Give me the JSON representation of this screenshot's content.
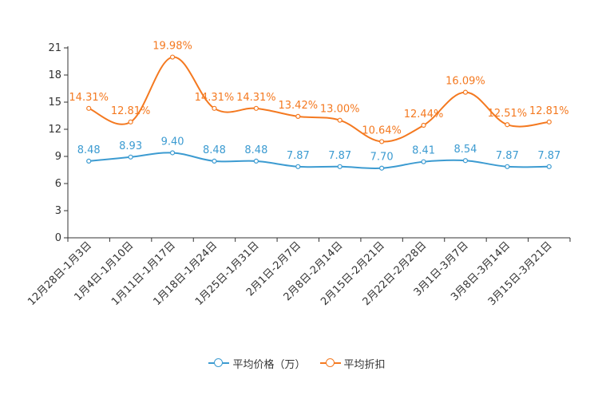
{
  "chart_data": {
    "type": "line",
    "title": "",
    "xlabel": "",
    "ylabel": "",
    "ylim": [
      0,
      21
    ],
    "yticks": [
      0,
      3,
      6,
      9,
      12,
      15,
      18,
      21
    ],
    "categories": [
      "12月28日-1月3日",
      "1月4日-1月10日",
      "1月11日-1月17日",
      "1月18日-1月24日",
      "1月25日-1月31日",
      "2月1日-2月7日",
      "2月8日-2月14日",
      "2月15日-2月21日",
      "2月22日-2月28日",
      "3月1日-3月7日",
      "3月8日-3月14日",
      "3月15日-3月21日"
    ],
    "series": [
      {
        "name": "平均价格（万）",
        "color": "#3c9bd1",
        "values": [
          8.48,
          8.93,
          9.4,
          8.48,
          8.48,
          7.87,
          7.87,
          7.7,
          8.41,
          8.54,
          7.87,
          7.87
        ],
        "labels": [
          "8.48",
          "8.93",
          "9.40",
          "8.48",
          "8.48",
          "7.87",
          "7.87",
          "7.70",
          "8.41",
          "8.54",
          "7.87",
          "7.87"
        ]
      },
      {
        "name": "平均折扣",
        "color": "#f47920",
        "values": [
          14.31,
          12.81,
          19.98,
          14.31,
          14.31,
          13.42,
          13.0,
          10.64,
          12.44,
          16.09,
          12.51,
          12.81
        ],
        "labels": [
          "14.31%",
          "12.81%",
          "19.98%",
          "14.31%",
          "14.31%",
          "13.42%",
          "13.00%",
          "10.64%",
          "12.44%",
          "16.09%",
          "12.51%",
          "12.81%"
        ]
      }
    ],
    "legend_position": "bottom-center",
    "grid": false
  }
}
